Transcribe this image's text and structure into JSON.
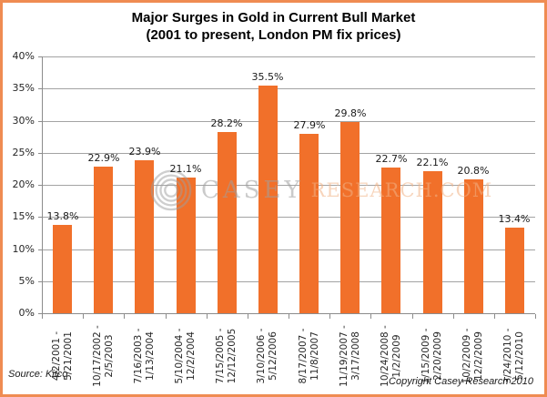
{
  "title": {
    "line1": "Major Surges in Gold in Current Bull Market",
    "line2": "(2001 to present, London PM fix prices)"
  },
  "footer": {
    "source": "Source: Kitco",
    "copyright": "Copyright Casey Research 2010"
  },
  "watermark": {
    "logo": "concentric-circles-icon",
    "casey": "CASEY",
    "research": "RESEARCH.COM"
  },
  "colors": {
    "bar": "#F1702A",
    "frame_border": "#EF8C52",
    "grid": "#A3A3A3",
    "axis": "#8C8C8C",
    "axis_text": "#262626",
    "value_text": "#1A1A1A",
    "title_text": "#000000",
    "watermark_gray": "#A0A0A0",
    "watermark_orange": "#F2B285"
  },
  "chart_data": {
    "type": "bar",
    "title": "Major Surges in Gold in Current Bull Market (2001 to present, London PM fix prices)",
    "categories": [
      [
        "4/2/2001 -",
        "5/21/2001"
      ],
      [
        "10/17/2002 -",
        "2/5/2003"
      ],
      [
        "7/16/2003 -",
        "1/13/2004"
      ],
      [
        "5/10/2004 -",
        "12/2/2004"
      ],
      [
        "7/15/2005 -",
        "12/12/2005"
      ],
      [
        "3/10/2006 -",
        "5/12/2006"
      ],
      [
        "8/17/2007 -",
        "11/8/2007"
      ],
      [
        "11/19/2007 -",
        "3/17/2008"
      ],
      [
        "10/24/2008 -",
        "1/2/2009"
      ],
      [
        "1/15/2009 -",
        "2/20/2009"
      ],
      [
        "10/2/2009 -",
        "12/2/2009"
      ],
      [
        "3/24/2010 -",
        "5/12/2010"
      ]
    ],
    "values": [
      13.8,
      22.9,
      23.9,
      21.1,
      28.2,
      35.5,
      27.9,
      29.8,
      22.7,
      22.1,
      20.8,
      13.4
    ],
    "value_labels": [
      "13.8%",
      "22.9%",
      "23.9%",
      "21.1%",
      "28.2%",
      "35.5%",
      "27.9%",
      "29.8%",
      "22.7%",
      "22.1%",
      "20.8%",
      "13.4%"
    ],
    "ylim": [
      0,
      40
    ],
    "ytick_step": 5,
    "ytick_labels": [
      "0%",
      "5%",
      "10%",
      "15%",
      "20%",
      "25%",
      "30%",
      "35%",
      "40%"
    ],
    "xlabel": "",
    "ylabel": "",
    "grid": true,
    "legend": false
  }
}
